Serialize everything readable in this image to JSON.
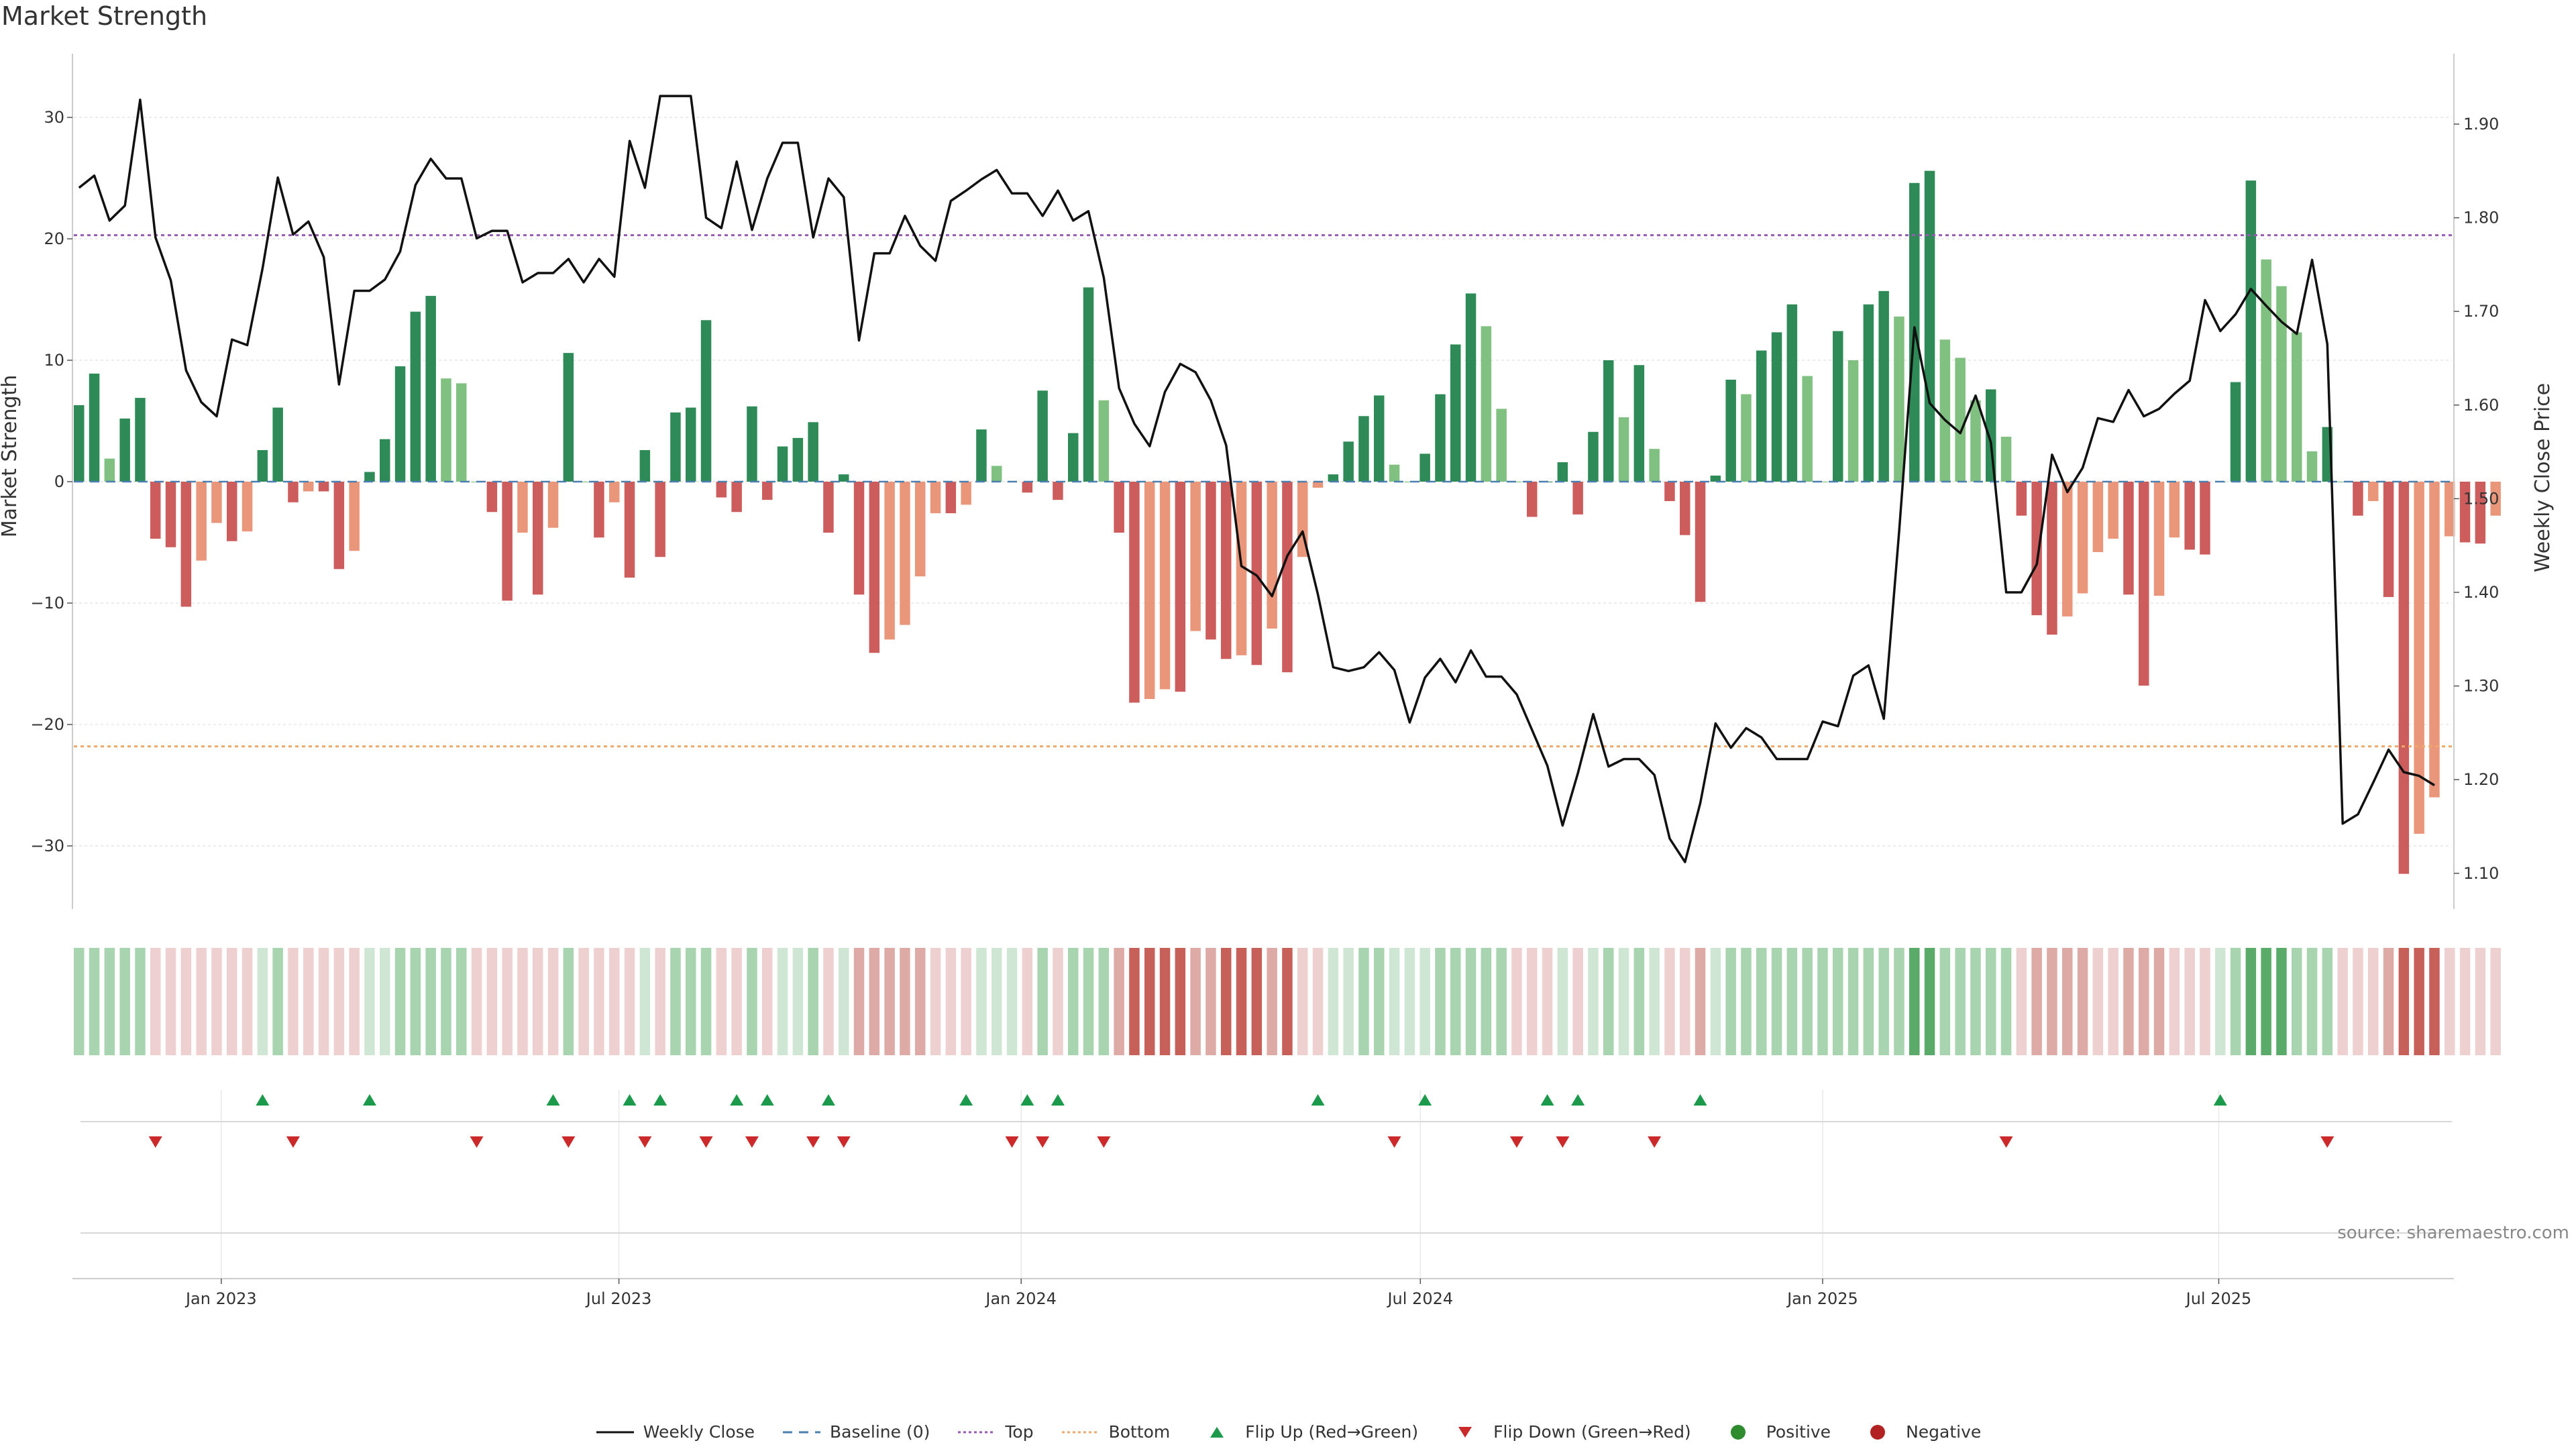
{
  "title": "Market Strength",
  "source": "source: sharemaestro.com",
  "colors": {
    "strong_pos": "#2e8b57",
    "weak_pos": "#80c080",
    "strong_neg": "#cd5c5c",
    "weak_neg": "#e9967a",
    "price_line": "#111111",
    "baseline": "#4a7fb0",
    "top": "#9b59b6",
    "bottom": "#f0a868",
    "flip_up": "#1a9a4a",
    "flip_down": "#cc2a2a",
    "positive_dot": "#2e8b2e",
    "negative_dot": "#b22222"
  },
  "legend": [
    {
      "label": "Weekly Close",
      "kind": "line",
      "color": "#111111"
    },
    {
      "label": "Baseline (0)",
      "kind": "dash",
      "color": "#4a7fb0"
    },
    {
      "label": "Top",
      "kind": "dot",
      "color": "#9b59b6"
    },
    {
      "label": "Bottom",
      "kind": "dot",
      "color": "#f0a868"
    },
    {
      "label": "Flip Up (Red→Green)",
      "kind": "tri-up",
      "color": "#1a9a4a"
    },
    {
      "label": "Flip Down (Green→Red)",
      "kind": "tri-down",
      "color": "#cc2a2a"
    },
    {
      "label": "Positive",
      "kind": "circle",
      "color": "#2e8b2e"
    },
    {
      "label": "Negative",
      "kind": "circle",
      "color": "#b22222"
    }
  ],
  "chart_data": {
    "type": "bar",
    "title": "Market Strength",
    "ylabel": "Market Strength",
    "y2label": "Weekly Close Price",
    "ylim": [
      -35,
      35
    ],
    "y2lim": [
      1.06,
      1.98
    ],
    "yticks": [
      30,
      20,
      10,
      0,
      -10,
      -20,
      -30
    ],
    "ytick_labels": [
      "30",
      "20",
      "10",
      "0",
      "−10",
      "−20",
      "−30"
    ],
    "y2ticks": [
      1.9,
      1.8,
      1.7,
      1.6,
      1.5,
      1.4,
      1.3,
      1.2,
      1.1
    ],
    "y2tick_labels": [
      "1.90",
      "1.80",
      "1.70",
      "1.60",
      "1.50",
      "1.40",
      "1.30",
      "1.20",
      "1.10"
    ],
    "x_start_week": 0,
    "x_ticks": [
      {
        "label": "Jan 2023",
        "week": 9.3
      },
      {
        "label": "Jul 2023",
        "week": 35.3
      },
      {
        "label": "Jan 2024",
        "week": 61.6
      },
      {
        "label": "Jul 2024",
        "week": 87.7
      },
      {
        "label": "Jan 2025",
        "week": 114
      },
      {
        "label": "Jul 2025",
        "week": 139.9
      }
    ],
    "top_line": 20.3,
    "bottom_line": -21.8,
    "strength": [
      6.3,
      8.9,
      1.9,
      5.2,
      6.9,
      -4.7,
      -5.4,
      -10.3,
      -6.5,
      -3.4,
      -4.9,
      -4.1,
      2.6,
      6.1,
      -1.7,
      -0.8,
      -0.8,
      -7.2,
      -5.7,
      0.8,
      3.5,
      9.5,
      14,
      15.3,
      8.5,
      8.1,
      0,
      -2.5,
      -9.8,
      -4.2,
      -9.3,
      -3.8,
      10.6,
      0,
      -4.6,
      -1.7,
      -7.9,
      2.6,
      -6.2,
      5.7,
      6.1,
      13.3,
      -1.3,
      -2.5,
      6.2,
      -1.5,
      2.9,
      3.6,
      4.9,
      -4.2,
      0.6,
      -9.3,
      -14.1,
      -13,
      -11.8,
      -7.8,
      -2.6,
      -2.6,
      -1.9,
      4.3,
      1.3,
      0,
      -0.9,
      7.5,
      -1.5,
      4,
      16,
      6.7,
      -4.2,
      -18.2,
      -17.9,
      -17.1,
      -17.3,
      -12.3,
      -13,
      -14.6,
      -14.3,
      -15.1,
      -12.1,
      -15.7,
      -6.2,
      -0.5,
      0.6,
      3.3,
      5.4,
      7.1,
      1.4,
      0,
      2.3,
      7.2,
      11.3,
      15.5,
      12.8,
      6,
      0,
      -2.9,
      0,
      1.6,
      -2.7,
      4.1,
      10,
      5.3,
      9.6,
      2.7,
      -1.6,
      -4.4,
      -9.9,
      0.5,
      8.4,
      7.2,
      10.8,
      12.3,
      14.6,
      8.7,
      0,
      12.4,
      10,
      14.6,
      15.7,
      13.6,
      24.6,
      25.6,
      11.7,
      10.2,
      6.7,
      7.6,
      3.7,
      -2.8,
      -11,
      -12.6,
      -11.1,
      -9.2,
      -5.8,
      -4.7,
      -9.3,
      -16.8,
      -9.4,
      -4.6,
      -5.6,
      -6,
      0,
      8.2,
      24.8,
      18.3,
      16.1,
      12.3,
      2.5,
      4.5,
      0,
      -2.8,
      -1.6,
      -9.5,
      -32.3,
      -29,
      -26,
      -4.5,
      -5,
      -5.1,
      -2.8
    ],
    "weekly_close": [
      1.832,
      1.845,
      1.797,
      1.813,
      1.926,
      1.779,
      1.733,
      1.637,
      1.603,
      1.588,
      1.67,
      1.664,
      1.746,
      1.843,
      1.782,
      1.796,
      1.758,
      1.622,
      1.722,
      1.722,
      1.734,
      1.764,
      1.835,
      1.863,
      1.842,
      1.842,
      1.778,
      1.786,
      1.786,
      1.731,
      1.741,
      1.741,
      1.756,
      1.731,
      1.756,
      1.737,
      1.882,
      1.832,
      1.93,
      1.93,
      1.93,
      1.8,
      1.789,
      1.86,
      1.787,
      1.842,
      1.88,
      1.88,
      1.779,
      1.842,
      1.822,
      1.669,
      1.762,
      1.762,
      1.802,
      1.77,
      1.754,
      1.818,
      1.829,
      1.841,
      1.851,
      1.826,
      1.826,
      1.802,
      1.829,
      1.797,
      1.807,
      1.736,
      1.618,
      1.58,
      1.556,
      1.614,
      1.644,
      1.635,
      1.605,
      1.557,
      1.428,
      1.418,
      1.396,
      1.439,
      1.465,
      1.398,
      1.32,
      1.316,
      1.32,
      1.336,
      1.317,
      1.261,
      1.309,
      1.329,
      1.304,
      1.338,
      1.31,
      1.31,
      1.291,
      1.253,
      1.215,
      1.151,
      1.207,
      1.27,
      1.214,
      1.222,
      1.222,
      1.205,
      1.137,
      1.112,
      1.175,
      1.26,
      1.234,
      1.255,
      1.245,
      1.222,
      1.222,
      1.222,
      1.262,
      1.257,
      1.311,
      1.322,
      1.265,
      1.465,
      1.683,
      1.602,
      1.584,
      1.57,
      1.61,
      1.56,
      1.4,
      1.4,
      1.43,
      1.547,
      1.507,
      1.533,
      1.586,
      1.582,
      1.616,
      1.588,
      1.596,
      1.612,
      1.626,
      1.712,
      1.679,
      1.697,
      1.724,
      1.706,
      1.689,
      1.676,
      1.755,
      1.665,
      1.153,
      1.163,
      1.197,
      1.232,
      1.208,
      1.204,
      1.194
    ],
    "heat": [
      2,
      2,
      2,
      2,
      2,
      -1,
      -1,
      -1,
      -1,
      -1,
      -1,
      -1,
      1,
      2,
      -1,
      -1,
      -1,
      -1,
      -1,
      1,
      1,
      2,
      2,
      2,
      2,
      2,
      -1,
      -1,
      -1,
      -1,
      -1,
      -1,
      2,
      -1,
      -1,
      -1,
      -1,
      1,
      -1,
      2,
      2,
      2,
      -1,
      -1,
      2,
      -1,
      1,
      1,
      2,
      -1,
      1,
      -2,
      -2,
      -2,
      -2,
      -2,
      -1,
      -1,
      -1,
      1,
      1,
      1,
      -1,
      2,
      -1,
      2,
      2,
      2,
      -2,
      -3,
      -3,
      -3,
      -3,
      -2,
      -2,
      -3,
      -3,
      -3,
      -2,
      -3,
      -1,
      -1,
      1,
      1,
      2,
      2,
      1,
      1,
      1,
      2,
      2,
      2,
      2,
      2,
      -1,
      -1,
      -1,
      1,
      -1,
      1,
      2,
      1,
      2,
      1,
      -1,
      -1,
      -2,
      1,
      2,
      2,
      2,
      2,
      2,
      2,
      2,
      2,
      2,
      2,
      2,
      2,
      3,
      3,
      2,
      2,
      2,
      2,
      2,
      -1,
      -2,
      -2,
      -2,
      -2,
      -1,
      -1,
      -2,
      -2,
      -2,
      -1,
      -1,
      -1,
      1,
      2,
      3,
      3,
      3,
      2,
      2,
      2,
      -1,
      -1,
      -1,
      -2,
      -3,
      -3,
      -3,
      -1,
      -1,
      -1,
      -1
    ],
    "flip_up_weeks": [
      12,
      19,
      31,
      36,
      38,
      43,
      45,
      49,
      58,
      62,
      64,
      81,
      88,
      96,
      98,
      106,
      140
    ],
    "flip_down_weeks": [
      5,
      14,
      26,
      32,
      37,
      41,
      44,
      48,
      50,
      61,
      63,
      67,
      86,
      94,
      97,
      103,
      126,
      147
    ]
  }
}
